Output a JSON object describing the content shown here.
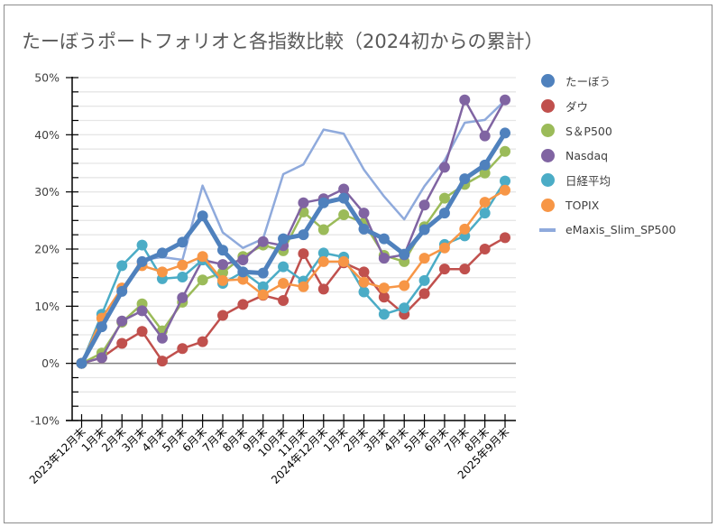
{
  "chart_data": {
    "type": "line",
    "title": "たーぼうポートフォリオと各指数比較（2024初からの累計）",
    "xlabel": "",
    "ylabel": "",
    "ylim": [
      -10,
      50
    ],
    "y_ticks": [
      "-10%",
      "0%",
      "10%",
      "20%",
      "30%",
      "40%",
      "50%"
    ],
    "y_tick_values": [
      -10,
      0,
      10,
      20,
      30,
      40,
      50
    ],
    "y_unit": "%",
    "grid": true,
    "legend_position": "right",
    "categories": [
      "2023年12月末",
      "1月末",
      "2月末",
      "3月末",
      "4月末",
      "5月末",
      "6月末",
      "7月末",
      "8月末",
      "9月末",
      "10月末",
      "11月末",
      "2024年12月末",
      "1月末",
      "2月末",
      "3月末",
      "4月末",
      "5月末",
      "6月末",
      "7月末",
      "8月末",
      "2025年9月末"
    ],
    "series": [
      {
        "name": "eMaxis_Slim_SP500",
        "color": "#8faadc",
        "style": "line",
        "values": [
          0,
          6.5,
          12.8,
          18.1,
          18.6,
          18.1,
          31.1,
          22.9,
          20.2,
          21.8,
          33.1,
          34.8,
          40.9,
          40.2,
          33.9,
          29.2,
          25.2,
          31.0,
          35.5,
          42.1,
          42.6,
          46.0
        ]
      },
      {
        "name": "ダウ",
        "color": "#c0504d",
        "style": "marker-line",
        "values": [
          0,
          1.0,
          3.5,
          5.6,
          0.4,
          2.6,
          3.8,
          8.4,
          10.3,
          11.9,
          11.0,
          19.2,
          13.0,
          17.6,
          16.0,
          11.6,
          8.6,
          12.2,
          16.5,
          16.5,
          20.0,
          22.0
        ]
      },
      {
        "name": "S＆P500",
        "color": "#9bbb59",
        "style": "marker-line",
        "values": [
          0,
          1.8,
          7.2,
          10.4,
          5.7,
          10.7,
          14.6,
          15.9,
          18.7,
          20.7,
          19.7,
          26.5,
          23.4,
          26.0,
          24.6,
          18.9,
          17.8,
          23.9,
          28.9,
          31.3,
          33.3,
          37.1
        ]
      },
      {
        "name": "Nasdaq",
        "color": "#8064a2",
        "style": "marker-line",
        "values": [
          0,
          1.0,
          7.4,
          9.2,
          4.4,
          11.5,
          18.1,
          17.3,
          18.1,
          21.3,
          20.6,
          28.1,
          28.8,
          30.5,
          26.3,
          18.4,
          19.0,
          27.7,
          34.3,
          46.1,
          39.8,
          46.1
        ]
      },
      {
        "name": "日経平均",
        "color": "#4bacc6",
        "style": "marker-line",
        "values": [
          0,
          8.6,
          17.1,
          20.7,
          14.8,
          15.1,
          18.1,
          14.0,
          16.0,
          13.4,
          16.9,
          14.4,
          19.3,
          18.6,
          12.5,
          8.6,
          9.7,
          14.5,
          20.8,
          22.3,
          26.3,
          31.9
        ]
      },
      {
        "name": "TOPIX",
        "color": "#f79646",
        "style": "marker-line",
        "values": [
          0,
          7.9,
          13.2,
          17.1,
          16.0,
          17.2,
          18.7,
          14.5,
          14.7,
          12.0,
          14.0,
          13.4,
          17.8,
          17.8,
          14.2,
          13.2,
          13.6,
          18.4,
          20.2,
          23.5,
          28.2,
          30.3
        ]
      },
      {
        "name": "たーぼう",
        "color": "#4f81bd",
        "style": "thick-marker-line",
        "values": [
          0,
          6.4,
          12.6,
          17.8,
          19.3,
          21.2,
          25.8,
          19.8,
          16.0,
          15.8,
          21.8,
          22.5,
          28.1,
          28.9,
          23.5,
          21.8,
          19.1,
          23.4,
          26.3,
          32.3,
          34.7,
          40.3
        ]
      }
    ],
    "legend": [
      {
        "name": "たーぼう",
        "color": "#4f81bd",
        "kind": "marker"
      },
      {
        "name": "ダウ",
        "color": "#c0504d",
        "kind": "marker"
      },
      {
        "name": "S＆P500",
        "color": "#9bbb59",
        "kind": "marker"
      },
      {
        "name": "Nasdaq",
        "color": "#8064a2",
        "kind": "marker"
      },
      {
        "name": "日経平均",
        "color": "#4bacc6",
        "kind": "marker"
      },
      {
        "name": "TOPIX",
        "color": "#f79646",
        "kind": "marker"
      },
      {
        "name": "eMaxis_Slim_SP500",
        "color": "#8faadc",
        "kind": "line"
      }
    ]
  }
}
